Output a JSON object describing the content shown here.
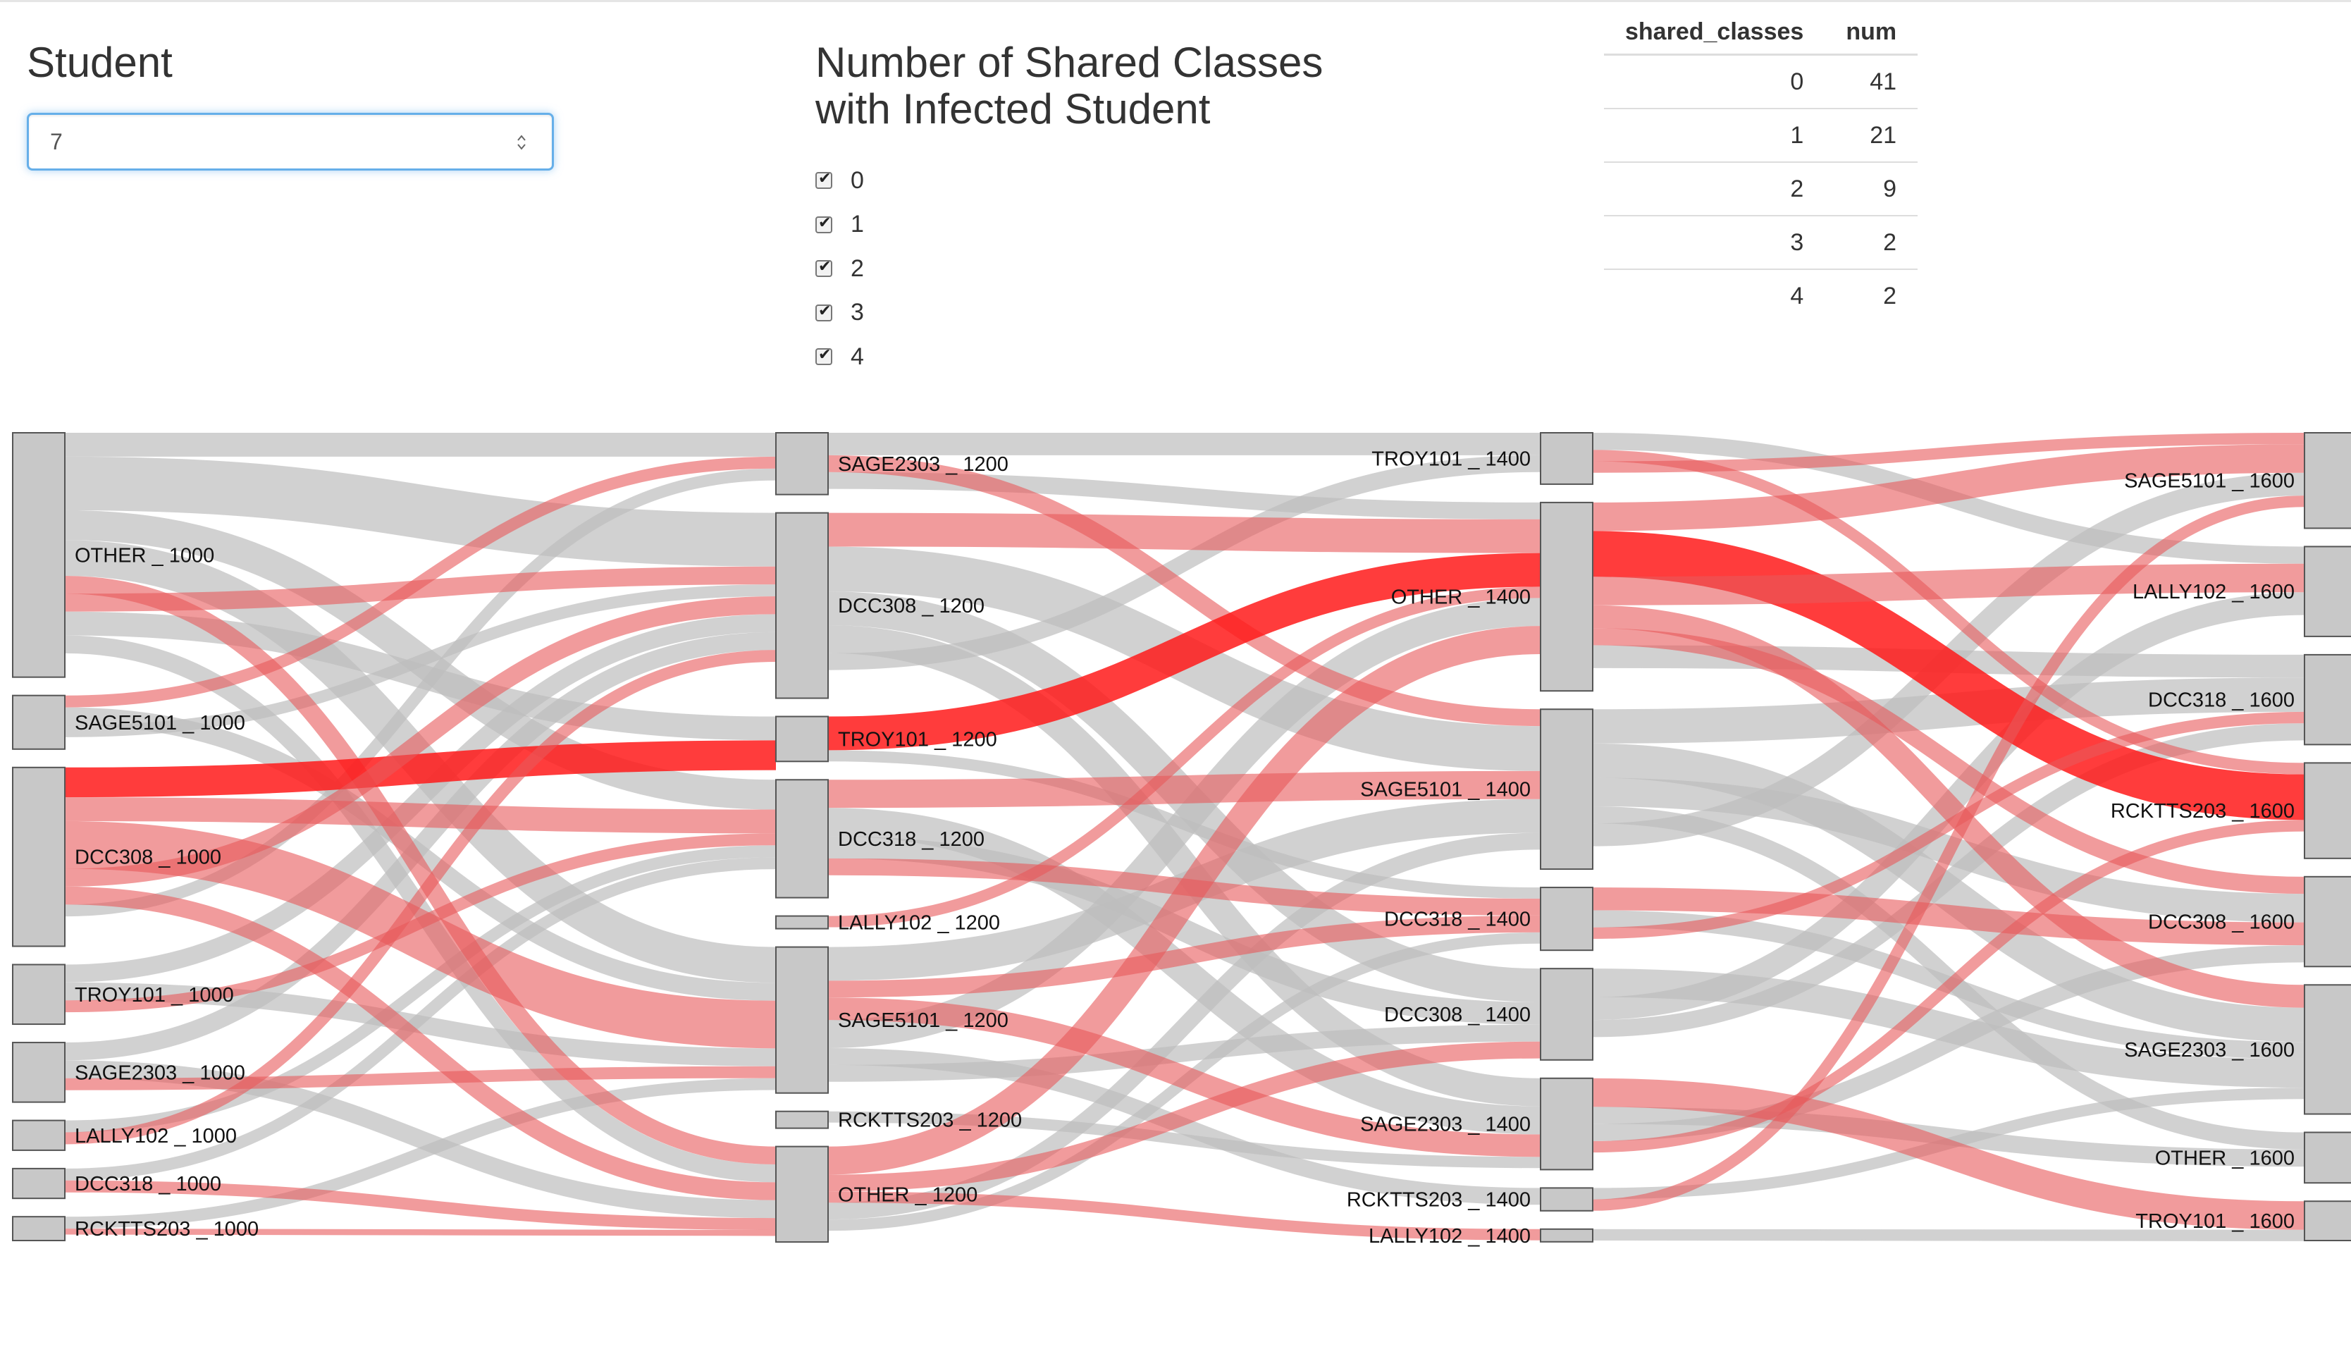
{
  "student": {
    "title": "Student",
    "value": "7"
  },
  "filter": {
    "title_line1": "Number of Shared Classes",
    "title_line2": "with Infected Student",
    "options": [
      "0",
      "1",
      "2",
      "3",
      "4"
    ]
  },
  "table": {
    "headers": [
      "shared_classes",
      "num"
    ],
    "rows": [
      [
        "0",
        "41"
      ],
      [
        "1",
        "21"
      ],
      [
        "2",
        "9"
      ],
      [
        "3",
        "2"
      ],
      [
        "4",
        "2"
      ]
    ]
  },
  "colors": {
    "node": "#c8c8c8",
    "link_grey": "#bdbdbd",
    "link_red": "#e8585a",
    "link_red_strong": "#ff1a1a",
    "input_focus": "#66afe9"
  },
  "sankey": {
    "columns": [
      {
        "time": "1000",
        "nodes": [
          {
            "name": "OTHER _ 1000",
            "size": 41
          },
          {
            "name": "SAGE5101 _ 1000",
            "size": 9
          },
          {
            "name": "DCC308 _ 1000",
            "size": 30
          },
          {
            "name": "TROY101 _ 1000",
            "size": 10
          },
          {
            "name": "SAGE2303 _ 1000",
            "size": 10
          },
          {
            "name": "LALLY102 _ 1000",
            "size": 5
          },
          {
            "name": "DCC318 _ 1000",
            "size": 5
          },
          {
            "name": "RCKTTS203 _ 1000",
            "size": 4
          }
        ]
      },
      {
        "time": "1200",
        "nodes": [
          {
            "name": "SAGE2303 _ 1200",
            "size": 11
          },
          {
            "name": "DCC308 _ 1200",
            "size": 33
          },
          {
            "name": "TROY101 _ 1200",
            "size": 8
          },
          {
            "name": "DCC318 _ 1200",
            "size": 21
          },
          {
            "name": "LALLY102 _ 1200",
            "size": 2
          },
          {
            "name": "SAGE5101 _ 1200",
            "size": 26
          },
          {
            "name": "RCKTTS203 _ 1200",
            "size": 3
          },
          {
            "name": "OTHER _ 1200",
            "size": 17
          }
        ]
      },
      {
        "time": "1400",
        "nodes": [
          {
            "name": "TROY101 _ 1400",
            "size": 9
          },
          {
            "name": "OTHER _ 1400",
            "size": 33
          },
          {
            "name": "SAGE5101 _ 1400",
            "size": 28
          },
          {
            "name": "DCC318 _ 1400",
            "size": 11
          },
          {
            "name": "DCC308 _ 1400",
            "size": 16
          },
          {
            "name": "SAGE2303 _ 1400",
            "size": 16
          },
          {
            "name": "RCKTTS203 _ 1400",
            "size": 4
          },
          {
            "name": "LALLY102 _ 1400",
            "size": 2
          }
        ]
      },
      {
        "time": "1600",
        "nodes": [
          {
            "name": "SAGE5101 _ 1600",
            "size": 17
          },
          {
            "name": "LALLY102 _ 1600",
            "size": 16
          },
          {
            "name": "DCC318 _ 1600",
            "size": 16
          },
          {
            "name": "RCKTTS203 _ 1600",
            "size": 17
          },
          {
            "name": "DCC308 _ 1600",
            "size": 16
          },
          {
            "name": "SAGE2303 _ 1600",
            "size": 23
          },
          {
            "name": "OTHER _ 1600",
            "size": 9
          },
          {
            "name": "TROY101 _ 1600",
            "size": 7
          }
        ]
      }
    ],
    "links": [
      [
        0,
        0,
        1,
        0,
        "g",
        4
      ],
      [
        0,
        0,
        1,
        1,
        "g",
        9
      ],
      [
        0,
        0,
        1,
        3,
        "g",
        5
      ],
      [
        0,
        0,
        1,
        5,
        "g",
        6
      ],
      [
        0,
        0,
        1,
        7,
        "r",
        3
      ],
      [
        0,
        0,
        1,
        1,
        "r",
        3
      ],
      [
        0,
        0,
        1,
        2,
        "g",
        4
      ],
      [
        0,
        0,
        1,
        7,
        "g",
        3
      ],
      [
        0,
        1,
        1,
        0,
        "r",
        2
      ],
      [
        0,
        1,
        1,
        5,
        "g",
        3
      ],
      [
        0,
        1,
        1,
        1,
        "g",
        2
      ],
      [
        0,
        2,
        1,
        2,
        "s",
        5
      ],
      [
        0,
        2,
        1,
        3,
        "r",
        4
      ],
      [
        0,
        2,
        1,
        5,
        "r",
        8
      ],
      [
        0,
        2,
        1,
        1,
        "r",
        3
      ],
      [
        0,
        2,
        1,
        7,
        "r",
        3
      ],
      [
        0,
        2,
        1,
        0,
        "g",
        2
      ],
      [
        0,
        3,
        1,
        1,
        "g",
        3
      ],
      [
        0,
        3,
        1,
        5,
        "g",
        3
      ],
      [
        0,
        3,
        1,
        3,
        "r",
        2
      ],
      [
        0,
        4,
        1,
        1,
        "g",
        3
      ],
      [
        0,
        4,
        1,
        7,
        "g",
        3
      ],
      [
        0,
        4,
        1,
        5,
        "r",
        2
      ],
      [
        0,
        5,
        1,
        3,
        "g",
        2
      ],
      [
        0,
        5,
        1,
        1,
        "r",
        2
      ],
      [
        0,
        6,
        1,
        3,
        "g",
        2
      ],
      [
        0,
        6,
        1,
        7,
        "r",
        2
      ],
      [
        0,
        7,
        1,
        5,
        "g",
        2
      ],
      [
        0,
        7,
        1,
        7,
        "r",
        1
      ],
      [
        1,
        0,
        2,
        0,
        "g",
        4
      ],
      [
        1,
        0,
        2,
        2,
        "r",
        3
      ],
      [
        1,
        0,
        2,
        1,
        "g",
        3
      ],
      [
        1,
        1,
        2,
        1,
        "r",
        6
      ],
      [
        1,
        1,
        2,
        2,
        "g",
        8
      ],
      [
        1,
        1,
        2,
        4,
        "g",
        6
      ],
      [
        1,
        1,
        2,
        5,
        "g",
        5
      ],
      [
        1,
        1,
        2,
        0,
        "g",
        3
      ],
      [
        1,
        2,
        2,
        1,
        "s",
        6
      ],
      [
        1,
        2,
        2,
        3,
        "g",
        2
      ],
      [
        1,
        3,
        2,
        2,
        "r",
        5
      ],
      [
        1,
        3,
        2,
        5,
        "g",
        5
      ],
      [
        1,
        3,
        2,
        4,
        "g",
        4
      ],
      [
        1,
        3,
        2,
        3,
        "r",
        3
      ],
      [
        1,
        4,
        2,
        1,
        "r",
        2
      ],
      [
        1,
        5,
        2,
        2,
        "g",
        6
      ],
      [
        1,
        5,
        2,
        3,
        "r",
        3
      ],
      [
        1,
        5,
        2,
        5,
        "r",
        4
      ],
      [
        1,
        5,
        2,
        1,
        "g",
        5
      ],
      [
        1,
        5,
        2,
        6,
        "g",
        3
      ],
      [
        1,
        5,
        2,
        4,
        "g",
        3
      ],
      [
        1,
        6,
        2,
        5,
        "g",
        2
      ],
      [
        1,
        7,
        2,
        1,
        "r",
        5
      ],
      [
        1,
        7,
        2,
        4,
        "r",
        3
      ],
      [
        1,
        7,
        2,
        7,
        "r",
        2
      ],
      [
        1,
        7,
        2,
        2,
        "g",
        3
      ],
      [
        1,
        7,
        2,
        3,
        "g",
        2
      ],
      [
        2,
        0,
        3,
        1,
        "g",
        3
      ],
      [
        2,
        0,
        3,
        3,
        "r",
        2
      ],
      [
        2,
        0,
        3,
        0,
        "r",
        2
      ],
      [
        2,
        1,
        3,
        0,
        "r",
        5
      ],
      [
        2,
        1,
        3,
        3,
        "s",
        8
      ],
      [
        2,
        1,
        3,
        1,
        "r",
        5
      ],
      [
        2,
        1,
        3,
        5,
        "r",
        4
      ],
      [
        2,
        1,
        3,
        4,
        "r",
        3
      ],
      [
        2,
        1,
        3,
        2,
        "g",
        4
      ],
      [
        2,
        2,
        3,
        2,
        "g",
        6
      ],
      [
        2,
        2,
        3,
        5,
        "g",
        6
      ],
      [
        2,
        2,
        3,
        4,
        "g",
        5
      ],
      [
        2,
        2,
        3,
        6,
        "g",
        3
      ],
      [
        2,
        2,
        3,
        0,
        "g",
        4
      ],
      [
        2,
        3,
        3,
        4,
        "r",
        4
      ],
      [
        2,
        3,
        3,
        5,
        "g",
        3
      ],
      [
        2,
        3,
        3,
        2,
        "r",
        2
      ],
      [
        2,
        4,
        3,
        5,
        "g",
        5
      ],
      [
        2,
        4,
        3,
        1,
        "g",
        4
      ],
      [
        2,
        4,
        3,
        2,
        "g",
        3
      ],
      [
        2,
        5,
        3,
        7,
        "r",
        5
      ],
      [
        2,
        5,
        3,
        6,
        "g",
        3
      ],
      [
        2,
        5,
        3,
        4,
        "g",
        3
      ],
      [
        2,
        5,
        3,
        3,
        "r",
        2
      ],
      [
        2,
        6,
        3,
        5,
        "g",
        2
      ],
      [
        2,
        6,
        3,
        0,
        "r",
        2
      ],
      [
        2,
        7,
        3,
        7,
        "g",
        2
      ]
    ]
  }
}
